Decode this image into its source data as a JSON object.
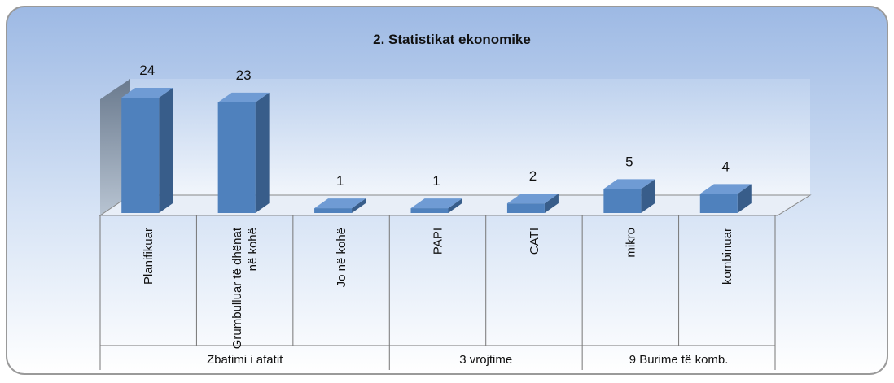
{
  "chart_data": {
    "type": "bar3d",
    "title": "2. Statistikat ekonomike",
    "color": "#4f81bd",
    "groups": [
      {
        "name": "Zbatimi i afatit",
        "categories": [
          "Planifikuar",
          "Grumbulluar të dhënat në kohë",
          "Jo në kohë"
        ],
        "values": [
          24,
          23,
          1
        ]
      },
      {
        "name": "3 vrojtime",
        "categories": [
          "PAPI",
          "CATI"
        ],
        "values": [
          1,
          2
        ]
      },
      {
        "name": "9 Burime të komb.",
        "categories": [
          "mikro",
          "kombinuar"
        ],
        "values": [
          5,
          4
        ]
      }
    ]
  }
}
